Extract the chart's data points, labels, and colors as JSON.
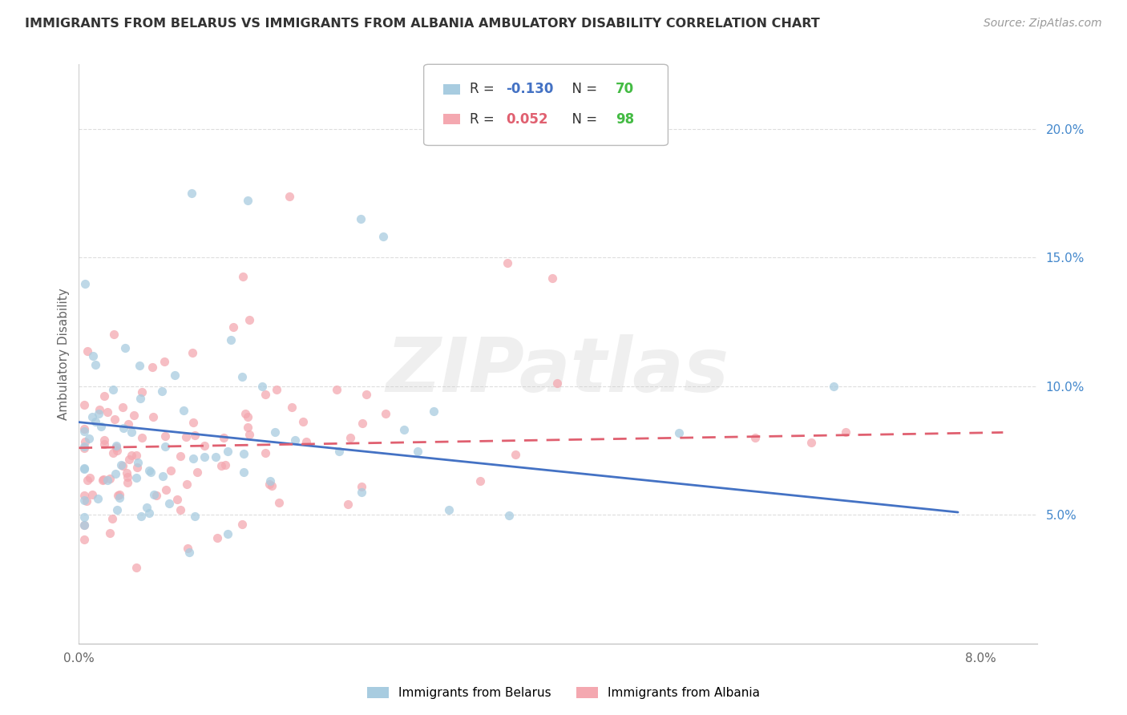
{
  "title": "IMMIGRANTS FROM BELARUS VS IMMIGRANTS FROM ALBANIA AMBULATORY DISABILITY CORRELATION CHART",
  "source": "Source: ZipAtlas.com",
  "ylabel": "Ambulatory Disability",
  "xlim": [
    0.0,
    0.085
  ],
  "ylim": [
    0.0,
    0.225
  ],
  "y_ticks_right": [
    0.05,
    0.1,
    0.15,
    0.2
  ],
  "y_tick_labels_right": [
    "5.0%",
    "10.0%",
    "15.0%",
    "20.0%"
  ],
  "x_tick_labels": [
    "0.0%",
    "8.0%"
  ],
  "x_ticks": [
    0.0,
    0.08
  ],
  "legend_r1_pre": "R = ",
  "legend_r1_val": "-0.130",
  "legend_n1_pre": "  N = ",
  "legend_n1_val": "70",
  "legend_r2_pre": "R =  ",
  "legend_r2_val": "0.052",
  "legend_n2_pre": "  N = ",
  "legend_n2_val": "98",
  "color_belarus": "#a8cce0",
  "color_albania": "#f4a8b0",
  "color_line_belarus": "#4472c4",
  "color_line_albania": "#e06070",
  "color_r_belarus": "#4472c4",
  "color_r_albania": "#e06070",
  "color_n": "#44bb44",
  "watermark_text": "ZIPatlas",
  "background_color": "#ffffff",
  "grid_color": "#dddddd",
  "text_color": "#666666",
  "title_color": "#333333",
  "source_color": "#999999",
  "n_belarus": 70,
  "n_albania": 98,
  "r_belarus": -0.13,
  "r_albania": 0.052,
  "belarus_line_x0": 0.0,
  "belarus_line_y0": 0.086,
  "belarus_line_x1": 0.078,
  "belarus_line_y1": 0.051,
  "albania_line_x0": 0.0,
  "albania_line_y0": 0.076,
  "albania_line_x1": 0.082,
  "albania_line_y1": 0.082
}
